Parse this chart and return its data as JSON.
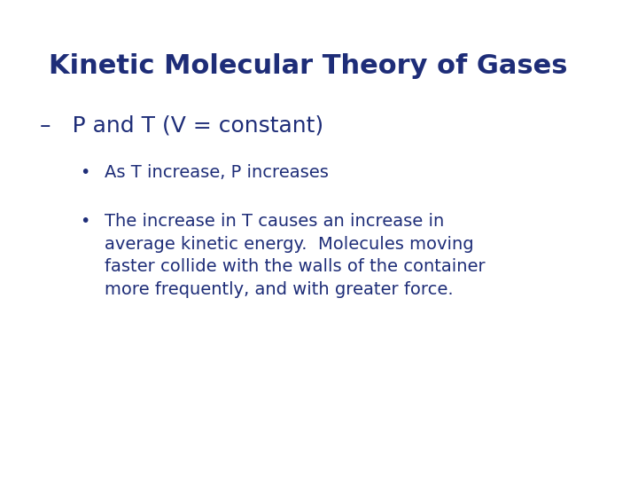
{
  "title": "Kinetic Molecular Theory of Gases",
  "title_color": "#1e2d78",
  "title_fontsize": 22,
  "title_bold": true,
  "subtitle": "–   P and T (V = constant)",
  "subtitle_color": "#1e2d78",
  "subtitle_fontsize": 18,
  "bullet1": "As T increase, P increases",
  "bullet2_line1": "The increase in T causes an increase in",
  "bullet2_line2": "average kinetic energy.  Molecules moving",
  "bullet2_line3": "faster collide with the walls of the container",
  "bullet2_line4": "more frequently, and with greater force.",
  "bullet_color": "#1e2d78",
  "bullet_fontsize": 14,
  "background_color": "#ffffff",
  "font_family": "DejaVu Sans"
}
